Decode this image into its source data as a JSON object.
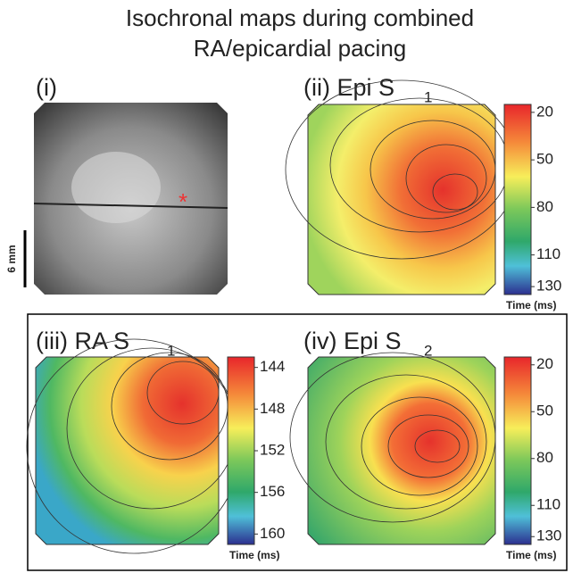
{
  "title_lines": [
    "Isochronal maps during combined",
    "RA/epicardial pacing"
  ],
  "panels": [
    {
      "label": "(i)",
      "scale_bar": "6 mm"
    },
    {
      "label": "(ii) Epi S",
      "subscript": "1",
      "colorbar": {
        "label": "Time (ms)",
        "lim": [
          15,
          135
        ],
        "ticks": [
          20,
          50,
          80,
          110,
          130
        ]
      }
    },
    {
      "label": "(iii) RA S",
      "subscript": "1",
      "colorbar": {
        "label": "Time (ms)",
        "lim": [
          143,
          161
        ],
        "ticks": [
          144,
          148,
          152,
          156,
          160
        ]
      }
    },
    {
      "label": "(iv) Epi S",
      "subscript": "2",
      "colorbar": {
        "label": "Time (ms)",
        "lim": [
          15,
          135
        ],
        "ticks": [
          20,
          50,
          80,
          110,
          130
        ]
      }
    }
  ]
}
